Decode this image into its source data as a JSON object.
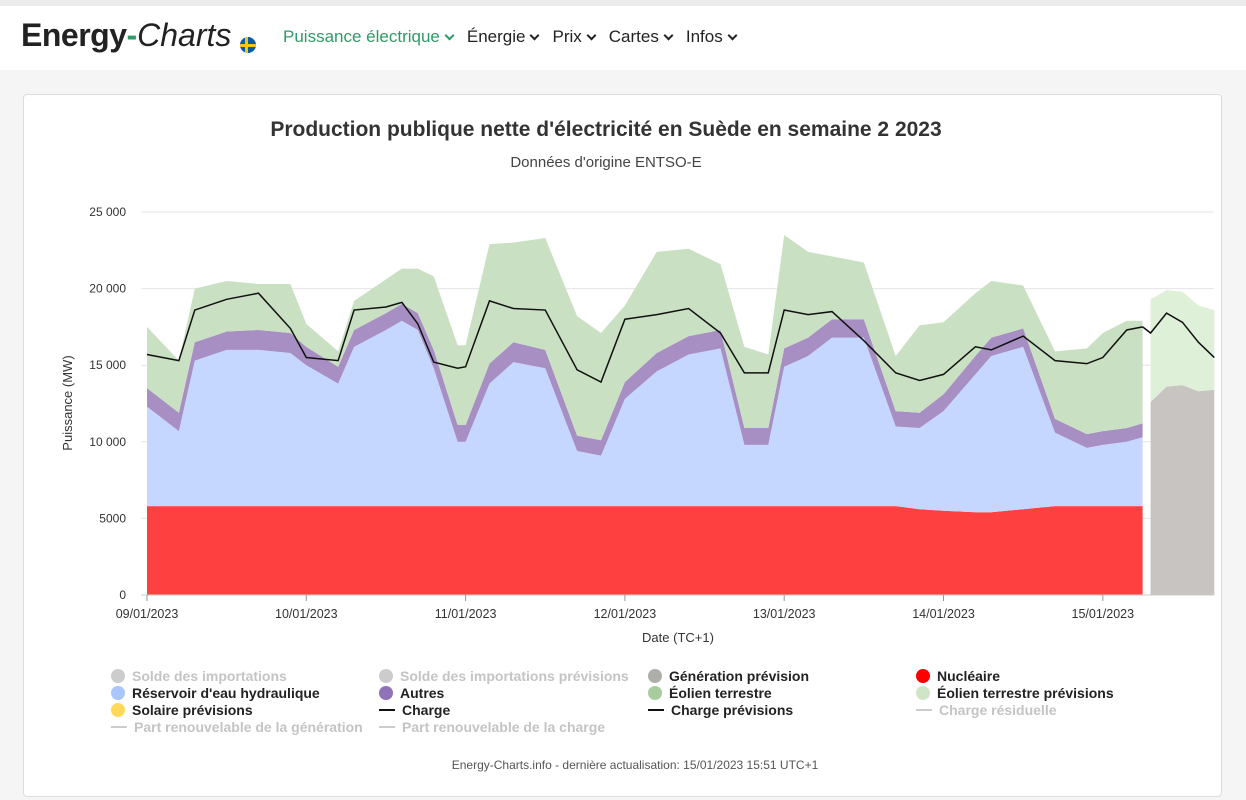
{
  "header": {
    "logo_part1": "Energy",
    "logo_dash": "-",
    "logo_part2": "Charts",
    "nav": [
      {
        "label": "Puissance électrique",
        "active": true
      },
      {
        "label": "Énergie",
        "active": false
      },
      {
        "label": "Prix",
        "active": false
      },
      {
        "label": "Cartes",
        "active": false
      },
      {
        "label": "Infos",
        "active": false
      }
    ]
  },
  "footer": "Energy-Charts.info - dernière actualisation: 15/01/2023 15:51 UTC+1",
  "chart_data": {
    "type": "area",
    "title": "Production publique nette d'électricité en Suède en semaine 2 2023",
    "subtitle": "Données d'origine ENTSO-E",
    "xlabel": "Date (TC+1)",
    "ylabel": "Puissance (MW)",
    "ylim": [
      0,
      25000
    ],
    "yticks": [
      0,
      5000,
      10000,
      15000,
      20000,
      25000
    ],
    "ytick_labels": [
      "0",
      "5000",
      "10 000",
      "15 000",
      "20 000",
      "25 000"
    ],
    "xlim": [
      0,
      6.7
    ],
    "xticks": [
      0,
      1,
      2,
      3,
      4,
      5,
      6
    ],
    "xtick_labels": [
      "09/01/2023",
      "10/01/2023",
      "11/01/2023",
      "12/01/2023",
      "13/01/2023",
      "14/01/2023",
      "15/01/2023"
    ],
    "grid": true,
    "legend_position": "bottom",
    "x": [
      0.0,
      0.2,
      0.3,
      0.5,
      0.7,
      0.9,
      1.0,
      1.2,
      1.3,
      1.5,
      1.6,
      1.7,
      1.8,
      1.95,
      2.0,
      2.15,
      2.3,
      2.5,
      2.7,
      2.85,
      3.0,
      3.2,
      3.4,
      3.6,
      3.75,
      3.9,
      4.0,
      4.15,
      4.3,
      4.5,
      4.7,
      4.85,
      5.0,
      5.2,
      5.3,
      5.5,
      5.7,
      5.9,
      6.0,
      6.15,
      6.25
    ],
    "forecast_x": [
      6.3,
      6.4,
      6.5,
      6.6,
      6.7
    ],
    "series": [
      {
        "name": "Nucléaire",
        "color": "#ff4040",
        "values": [
          5800,
          5800,
          5800,
          5800,
          5800,
          5800,
          5800,
          5800,
          5800,
          5800,
          5800,
          5800,
          5800,
          5800,
          5800,
          5800,
          5800,
          5800,
          5800,
          5800,
          5800,
          5800,
          5800,
          5800,
          5800,
          5800,
          5800,
          5800,
          5800,
          5800,
          5800,
          5600,
          5500,
          5400,
          5400,
          5600,
          5800,
          5800,
          5800,
          5800,
          5800
        ]
      },
      {
        "name": "Réservoir d'eau hydraulique",
        "color": "#c6d7ff",
        "values": [
          6500,
          4900,
          9500,
          10200,
          10200,
          10000,
          9200,
          8000,
          10400,
          11500,
          12100,
          11500,
          9000,
          4200,
          4200,
          8000,
          9400,
          9000,
          3600,
          3300,
          7000,
          8800,
          9900,
          10300,
          4000,
          4000,
          9100,
          9800,
          11000,
          11000,
          5200,
          5300,
          6500,
          9000,
          10200,
          10600,
          4800,
          3800,
          4000,
          4200,
          4500
        ]
      },
      {
        "name": "Autres",
        "color": "#a78fc4",
        "values": [
          1200,
          1200,
          1200,
          1200,
          1300,
          1300,
          1200,
          1100,
          1100,
          1100,
          1100,
          1100,
          1200,
          1100,
          1100,
          1300,
          1300,
          1200,
          1000,
          1000,
          1100,
          1200,
          1200,
          1200,
          1100,
          1100,
          1200,
          1200,
          1200,
          1200,
          1000,
          1000,
          1100,
          1200,
          1200,
          1200,
          900,
          900,
          900,
          900,
          900
        ]
      },
      {
        "name": "Éolien terrestre",
        "color": "#c9e1c2",
        "values": [
          4000,
          3400,
          3500,
          3300,
          3000,
          3200,
          1500,
          1000,
          1900,
          2200,
          2300,
          2900,
          4800,
          5200,
          5200,
          7800,
          6500,
          7300,
          7800,
          7000,
          5000,
          6600,
          5700,
          4300,
          5300,
          4800,
          7400,
          5600,
          4100,
          3700,
          3600,
          5700,
          4700,
          4100,
          3700,
          2800,
          4400,
          5600,
          6400,
          7000,
          6700
        ]
      }
    ],
    "forecast_series": [
      {
        "name": "Génération prévision",
        "color": "#c8c4c2",
        "values": [
          12600,
          13600,
          13700,
          13300,
          13400
        ]
      },
      {
        "name": "Éolien terrestre prévisions",
        "color": "#dff0d8",
        "values": [
          6700,
          6300,
          6100,
          5600,
          5200
        ]
      }
    ],
    "load": {
      "name": "Charge",
      "values": [
        15700,
        15300,
        18600,
        19300,
        19700,
        17400,
        15500,
        15300,
        18600,
        18800,
        19100,
        17700,
        15200,
        14800,
        14900,
        19200,
        18700,
        18600,
        14700,
        13900,
        18000,
        18300,
        18700,
        17100,
        14500,
        14500,
        18600,
        18300,
        18500,
        16600,
        14500,
        14000,
        14400,
        16200,
        16000,
        16900,
        15300,
        15100,
        15500,
        17300,
        17500
      ]
    },
    "load_forecast": {
      "name": "Charge prévisions",
      "values": [
        17100,
        18400,
        17800,
        16500,
        15500
      ]
    },
    "legend": [
      {
        "label": "Solde des importations",
        "color": "#cccccc",
        "kind": "dot",
        "enabled": false
      },
      {
        "label": "Solde des importations prévisions",
        "color": "#cccccc",
        "kind": "dot",
        "enabled": false
      },
      {
        "label": "Génération prévision",
        "color": "#b0aeab",
        "kind": "dot",
        "enabled": true
      },
      {
        "label": "Nucléaire",
        "color": "#ff0000",
        "kind": "dot",
        "enabled": true
      },
      {
        "label": "Réservoir d'eau hydraulique",
        "color": "#a9c6ff",
        "kind": "dot",
        "enabled": true
      },
      {
        "label": "Autres",
        "color": "#8f73b6",
        "kind": "dot",
        "enabled": true
      },
      {
        "label": "Éolien terrestre",
        "color": "#a8cc9e",
        "kind": "dot",
        "enabled": true
      },
      {
        "label": "Éolien terrestre prévisions",
        "color": "#cfe6c6",
        "kind": "dot",
        "enabled": true
      },
      {
        "label": "Solaire prévisions",
        "color": "#ffd95a",
        "kind": "dot",
        "enabled": true
      },
      {
        "label": "Charge",
        "color": "#111111",
        "kind": "line",
        "enabled": true
      },
      {
        "label": "Charge prévisions",
        "color": "#111111",
        "kind": "line",
        "enabled": true
      },
      {
        "label": "Charge résiduelle",
        "color": "#cccccc",
        "kind": "line",
        "enabled": false
      },
      {
        "label": "Part renouvelable de la génération",
        "color": "#cccccc",
        "kind": "line",
        "enabled": false
      },
      {
        "label": "Part renouvelable de la charge",
        "color": "#cccccc",
        "kind": "line",
        "enabled": false
      }
    ]
  }
}
